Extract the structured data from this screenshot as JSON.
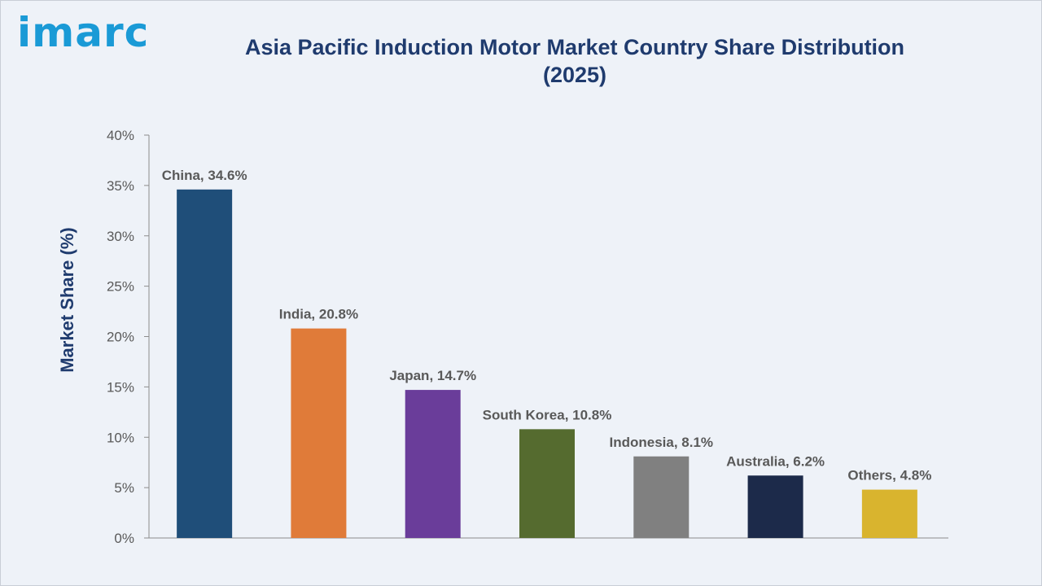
{
  "brand": {
    "logo_text": "imarc",
    "logo_color": "#1a9ad6"
  },
  "title_lines": [
    "Asia Pacific Induction Motor Market Country Share Distribution",
    "(2025)"
  ],
  "colors": {
    "title": "#1f3b6e",
    "axis_title": "#1f3b6e",
    "tick_text": "#595959",
    "data_label_text": "#595959",
    "axis_line": "#8c8c8c"
  },
  "chart_data": {
    "type": "bar",
    "title": "Asia Pacific Induction Motor Market Country Share Distribution (2025)",
    "xlabel": "",
    "ylabel": "Market Share (%)",
    "categories": [
      "China",
      "India",
      "Japan",
      "South Korea",
      "Indonesia",
      "Australia",
      "Others"
    ],
    "values": [
      34.6,
      20.8,
      14.7,
      10.8,
      8.1,
      6.2,
      4.8
    ],
    "data_labels": [
      "China, 34.6%",
      "India, 20.8%",
      "Japan, 14.7%",
      "South Korea, 10.8%",
      "Indonesia, 8.1%",
      "Australia, 6.2%",
      "Others, 4.8%"
    ],
    "bar_colors": [
      "#1f4e79",
      "#e07b39",
      "#6a3d9a",
      "#556b2f",
      "#808080",
      "#1c2a4a",
      "#d9b42e"
    ],
    "ylim": [
      0,
      40
    ],
    "yticks": [
      0,
      5,
      10,
      15,
      20,
      25,
      30,
      35,
      40
    ],
    "ytick_labels": [
      "0%",
      "5%",
      "10%",
      "15%",
      "20%",
      "25%",
      "30%",
      "35%",
      "40%"
    ],
    "grid": false,
    "legend": "none"
  }
}
